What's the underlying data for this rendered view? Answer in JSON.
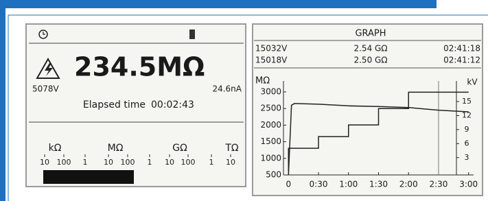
{
  "left_screen": {
    "reading": "234.5MΩ",
    "voltage": "5078V",
    "current": "24.6nA",
    "elapsed_label": "Elapsed time",
    "elapsed_time": "00:02:43",
    "scale_units": [
      "kΩ",
      "MΩ",
      "GΩ",
      "TΩ"
    ],
    "scale_numbers": [
      "10",
      "100",
      "1",
      "10",
      "100",
      "1",
      "10",
      "100",
      "1",
      "10"
    ]
  },
  "right_screen": {
    "title": "GRAPH",
    "rows": [
      [
        "15032V",
        "2.54 GΩ",
        "02:41:18"
      ],
      [
        "15018V",
        "2.50 GΩ",
        "02:41:12"
      ]
    ],
    "graph": {
      "type": "line",
      "y_label": "MΩ",
      "y2_label": "kV",
      "xlim": [
        -5,
        185
      ],
      "xticks": [
        {
          "value": 0,
          "label": "0"
        },
        {
          "value": 30,
          "label": "0:30"
        },
        {
          "value": 60,
          "label": "1:00"
        },
        {
          "value": 90,
          "label": "1:30"
        },
        {
          "value": 120,
          "label": "2:00"
        },
        {
          "value": 150,
          "label": "2:30"
        },
        {
          "value": 180,
          "label": "3:00"
        }
      ],
      "ylim": [
        500,
        3330
      ],
      "yticks": [
        500,
        1000,
        1500,
        2000,
        2500,
        3000
      ],
      "y2lim": [
        -0.7,
        19.4
      ],
      "y2ticks": [
        3,
        6,
        9,
        12,
        15
      ],
      "cursor_x": 150,
      "series": [
        {
          "color": "#222222",
          "x": [
            0,
            3,
            6,
            30,
            60,
            90,
            120,
            150,
            180
          ],
          "values": [
            500,
            2600,
            2650,
            2630,
            2580,
            2560,
            2530,
            2450,
            2400
          ]
        },
        {
          "color": "#222222",
          "axis": "y2",
          "x": [
            0,
            0,
            30,
            30,
            60,
            60,
            90,
            90,
            120,
            120,
            180
          ],
          "values": [
            0,
            5,
            5,
            7.5,
            7.5,
            10,
            10,
            13.5,
            13.5,
            17,
            17
          ]
        }
      ]
    }
  }
}
